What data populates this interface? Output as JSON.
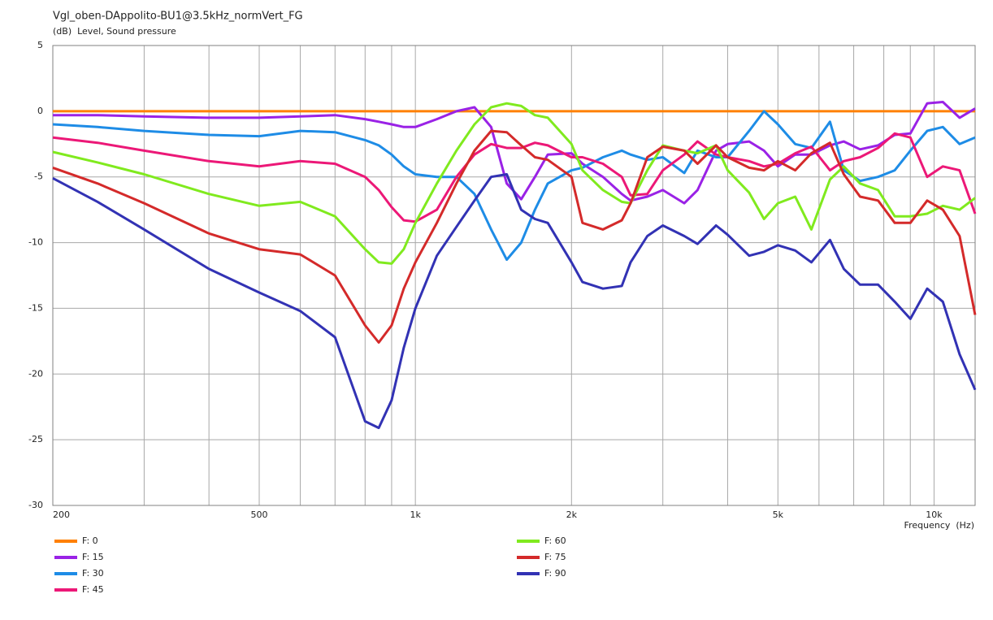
{
  "chart_data": {
    "type": "line",
    "title": "Vgl_oben-DAppolito-BU1@3.5kHz_normVert_FG",
    "y_label": "(dB)  Level, Sound pressure",
    "x_label": "Frequency  (Hz)",
    "xscale": "log",
    "grid": true,
    "legend": "bottom",
    "xlim": [
      200,
      12000
    ],
    "xticks": [
      200,
      500,
      {
        "value": 1000,
        "label": "1k"
      },
      {
        "value": 2000,
        "label": "2k"
      },
      {
        "value": 5000,
        "label": "5k"
      },
      {
        "value": 10000,
        "label": "10k"
      }
    ],
    "xgrid_minor": [
      300,
      400,
      600,
      700,
      800,
      900,
      3000,
      4000,
      6000,
      7000,
      8000,
      9000
    ],
    "ylim": [
      -30,
      5
    ],
    "yticks": [
      5,
      0,
      -5,
      -10,
      -15,
      -20,
      -25,
      -30
    ],
    "x": [
      200,
      244,
      300,
      400,
      500,
      600,
      700,
      800,
      850,
      900,
      950,
      1000,
      1100,
      1200,
      1300,
      1400,
      1500,
      1600,
      1700,
      1800,
      2000,
      2100,
      2300,
      2500,
      2600,
      2800,
      3000,
      3300,
      3500,
      3800,
      4000,
      4400,
      4700,
      5000,
      5400,
      5800,
      6300,
      6700,
      7200,
      7800,
      8400,
      9000,
      9700,
      10400,
      11200,
      12000
    ],
    "series": [
      {
        "name": "F: 0",
        "color": "#ff8000",
        "values": [
          0,
          0,
          0,
          0,
          0,
          0,
          0,
          0,
          0,
          0,
          0,
          0,
          0,
          0,
          0,
          0,
          0,
          0,
          0,
          0,
          0,
          0,
          0,
          0,
          0,
          0,
          0,
          0,
          0,
          0,
          0,
          0,
          0,
          0,
          0,
          0,
          0,
          0,
          0,
          0,
          0,
          0,
          0,
          0,
          0,
          0
        ]
      },
      {
        "name": "F: 15",
        "color": "#9a22e6",
        "values": [
          -0.3,
          -0.3,
          -0.4,
          -0.5,
          -0.5,
          -0.4,
          -0.3,
          -0.6,
          -0.8,
          -1.0,
          -1.2,
          -1.2,
          -0.6,
          0.0,
          0.3,
          -1.2,
          -5.5,
          -6.7,
          -5.0,
          -3.3,
          -3.2,
          -4.0,
          -5.0,
          -6.3,
          -6.8,
          -6.5,
          -6.0,
          -7.0,
          -6.0,
          -3.0,
          -2.5,
          -2.3,
          -3.0,
          -4.2,
          -3.3,
          -3.3,
          -2.6,
          -2.3,
          -2.9,
          -2.6,
          -1.8,
          -1.7,
          0.6,
          0.7,
          -0.5,
          0.2
        ]
      },
      {
        "name": "F: 30",
        "color": "#1e8ce6",
        "values": [
          -1.0,
          -1.2,
          -1.5,
          -1.8,
          -1.9,
          -1.5,
          -1.6,
          -2.2,
          -2.6,
          -3.3,
          -4.2,
          -4.8,
          -5.0,
          -5.0,
          -6.3,
          -9.0,
          -11.3,
          -10.0,
          -7.5,
          -5.5,
          -4.5,
          -4.3,
          -3.5,
          -3.0,
          -3.3,
          -3.7,
          -3.5,
          -4.7,
          -3.0,
          -3.5,
          -3.5,
          -1.5,
          0.0,
          -1.0,
          -2.5,
          -2.8,
          -0.8,
          -4.5,
          -5.3,
          -5.0,
          -4.5,
          -3.0,
          -1.5,
          -1.2,
          -2.5,
          -2.0
        ]
      },
      {
        "name": "F: 45",
        "color": "#ec1877",
        "values": [
          -2.0,
          -2.4,
          -3.0,
          -3.8,
          -4.2,
          -3.8,
          -4.0,
          -5.0,
          -6.0,
          -7.3,
          -8.3,
          -8.4,
          -7.5,
          -5.0,
          -3.3,
          -2.5,
          -2.8,
          -2.8,
          -2.4,
          -2.6,
          -3.5,
          -3.5,
          -4.0,
          -5.0,
          -6.4,
          -6.3,
          -4.5,
          -3.3,
          -2.3,
          -3.3,
          -3.5,
          -3.8,
          -4.2,
          -4.0,
          -3.2,
          -2.7,
          -4.5,
          -3.8,
          -3.5,
          -2.8,
          -1.7,
          -2.0,
          -5.0,
          -4.2,
          -4.5,
          -7.8
        ]
      },
      {
        "name": "F: 60",
        "color": "#80ea1e",
        "values": [
          -3.1,
          -3.9,
          -4.8,
          -6.3,
          -7.2,
          -6.9,
          -8.0,
          -10.5,
          -11.5,
          -11.6,
          -10.5,
          -8.5,
          -5.5,
          -3.0,
          -1.0,
          0.3,
          0.6,
          0.4,
          -0.3,
          -0.5,
          -2.5,
          -4.5,
          -6.0,
          -6.9,
          -7.0,
          -4.5,
          -2.6,
          -3.0,
          -3.2,
          -2.6,
          -4.5,
          -6.2,
          -8.2,
          -7.0,
          -6.5,
          -9.0,
          -5.2,
          -4.2,
          -5.5,
          -6.0,
          -8.0,
          -8.0,
          -7.8,
          -7.2,
          -7.5,
          -6.6
        ]
      },
      {
        "name": "F: 75",
        "color": "#d42a2a",
        "values": [
          -4.3,
          -5.5,
          -7.0,
          -9.3,
          -10.5,
          -10.9,
          -12.5,
          -16.3,
          -17.6,
          -16.3,
          -13.5,
          -11.5,
          -8.5,
          -5.5,
          -3.0,
          -1.5,
          -1.6,
          -2.6,
          -3.5,
          -3.7,
          -5.0,
          -8.5,
          -9.0,
          -8.3,
          -7.0,
          -3.5,
          -2.7,
          -3.0,
          -4.0,
          -2.6,
          -3.5,
          -4.3,
          -4.5,
          -3.8,
          -4.5,
          -3.2,
          -2.4,
          -4.8,
          -6.5,
          -6.8,
          -8.5,
          -8.5,
          -6.8,
          -7.5,
          -9.5,
          -15.5
        ]
      },
      {
        "name": "F: 90",
        "color": "#3232b4",
        "values": [
          -5.1,
          -6.9,
          -9.0,
          -12.0,
          -13.8,
          -15.2,
          -17.2,
          -23.6,
          -24.1,
          -22.0,
          -18.0,
          -15.0,
          -11.0,
          -8.8,
          -6.8,
          -5.0,
          -4.8,
          -7.5,
          -8.2,
          -8.5,
          -11.5,
          -13.0,
          -13.5,
          -13.3,
          -11.5,
          -9.5,
          -8.7,
          -9.5,
          -10.1,
          -8.7,
          -9.4,
          -11.0,
          -10.7,
          -10.2,
          -10.6,
          -11.5,
          -9.8,
          -12.0,
          -13.2,
          -13.2,
          -14.5,
          -15.8,
          -13.5,
          -14.5,
          -18.5,
          -21.2
        ]
      }
    ]
  }
}
